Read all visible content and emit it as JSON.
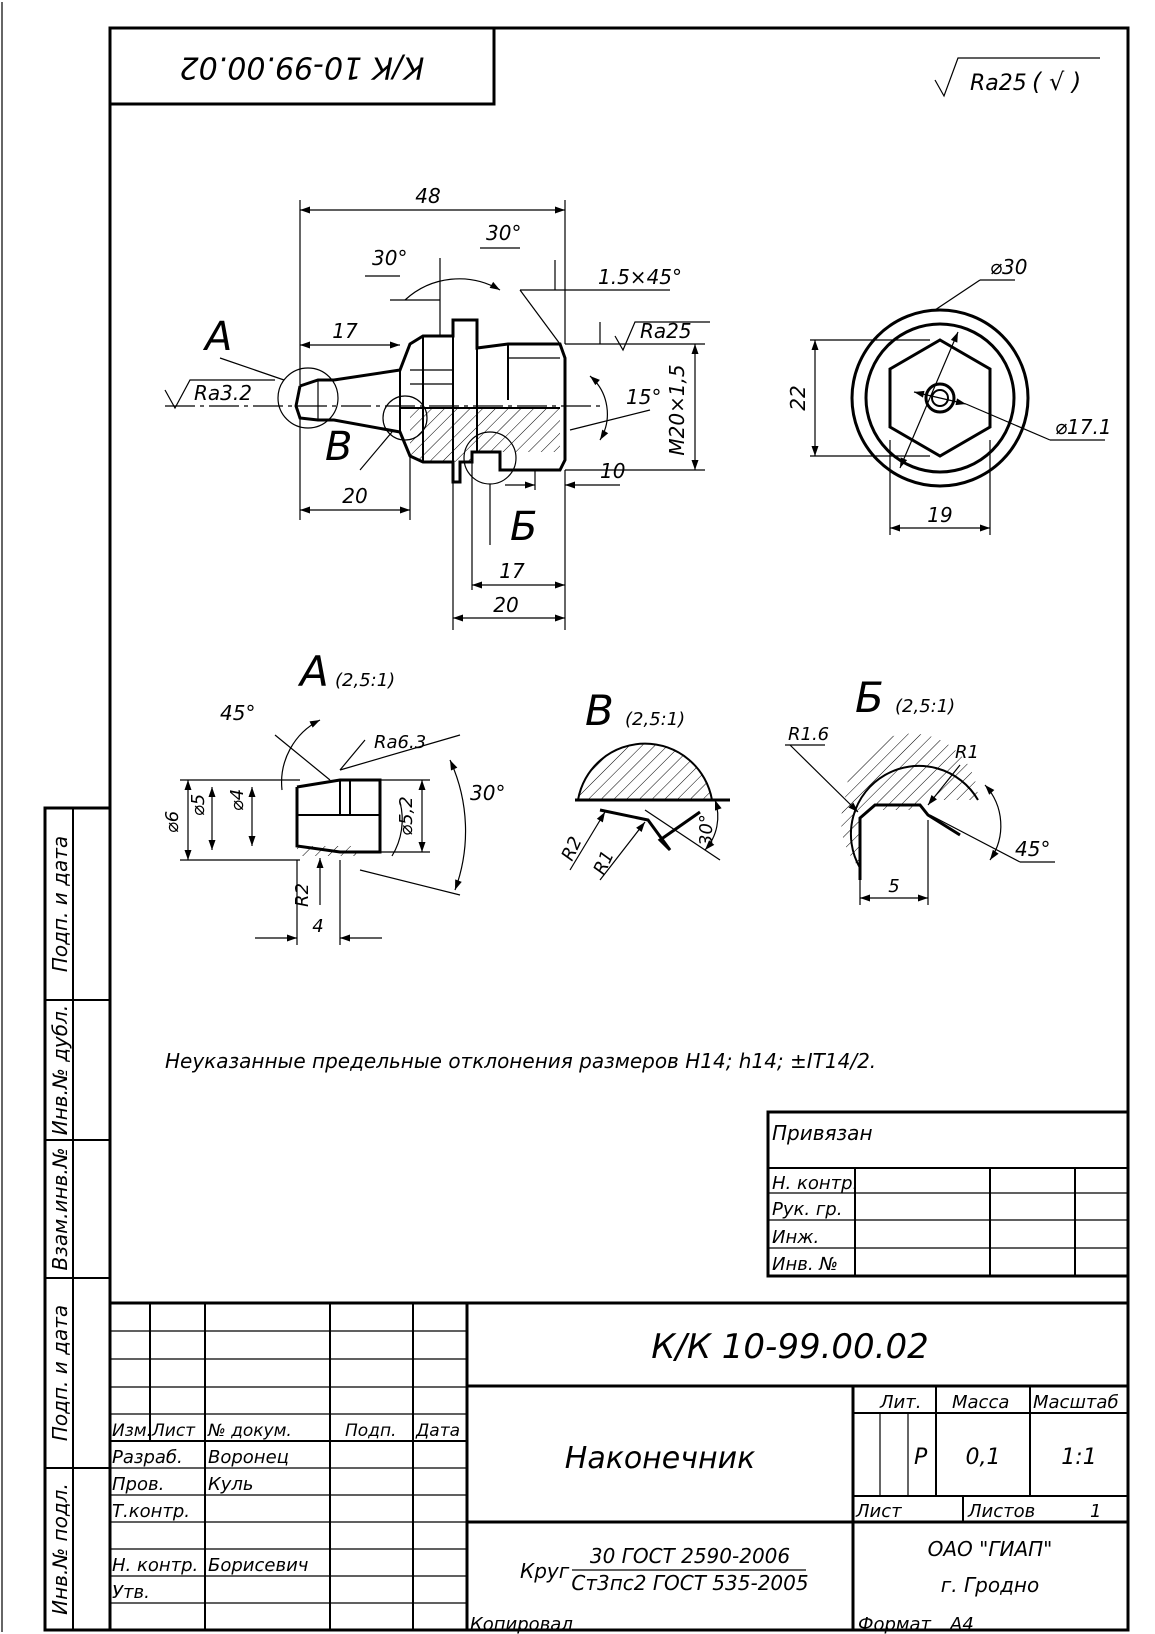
{
  "corner_designation": "К/К 10-99.00.02",
  "roughness_general": "Ra25",
  "roughness_general_bracket": "( √ )",
  "main_view": {
    "dims": {
      "overall_length": "48",
      "angle_left": "30°",
      "angle_right": "30°",
      "chamfer": "1.5×45°",
      "len_17_left": "17",
      "len_20_left": "20",
      "len_17_bottom": "17",
      "len_20_bottom": "20",
      "len_10": "10",
      "thread": "M20×1,5",
      "angle_15": "15°"
    },
    "roughness_left": "Ra3.2",
    "roughness_right": "Ra25",
    "callout_a": "А",
    "callout_v": "В",
    "callout_b": "Б"
  },
  "end_view": {
    "dia_30": "⌀30",
    "dia_17_1": "⌀17.1",
    "dim_22": "22",
    "dim_19": "19"
  },
  "detail_a": {
    "letter": "А",
    "scale": "(2,5:1)",
    "angle_45": "45°",
    "roughness": "Ra6.3",
    "angle_30": "30°",
    "d6": "⌀6",
    "d5": "⌀5",
    "d4": "⌀4",
    "d5_2": "⌀5,2",
    "r2": "R2",
    "len_4": "4"
  },
  "detail_v": {
    "letter": "В",
    "scale": "(2,5:1)",
    "r2": "R2",
    "r1": "R1",
    "angle_30": "30°"
  },
  "detail_b": {
    "letter": "Б",
    "scale": "(2,5:1)",
    "r1_6": "R1.6",
    "r1": "R1",
    "angle_45": "45°",
    "len_5": "5"
  },
  "note": "Неуказанные предельные отклонения размеров H14; h14; ±IT14/2.",
  "binding": {
    "title": "Привязан",
    "rows": [
      "Н. контр.",
      "Рук. гр.",
      "Инж.",
      "Инв. №"
    ]
  },
  "side_strip": [
    "Подп. и дата",
    "Инв.№ дубл.",
    "Взам.инв.№",
    "Подп. и дата",
    "Инв.№ подл."
  ],
  "title_block": {
    "designation": "К/К 10-99.00.02",
    "name": "Наконечник",
    "headers": {
      "izm": "Изм.",
      "list": "Лист",
      "doc": "№ докум.",
      "sign": "Подп.",
      "date": "Дата"
    },
    "roles": [
      {
        "role": "Разраб.",
        "name": "Воронец"
      },
      {
        "role": "Пров.",
        "name": "Куль"
      },
      {
        "role": "Т.контр.",
        "name": ""
      },
      {
        "role": "",
        "name": ""
      },
      {
        "role": "Н. контр.",
        "name": "Борисевич"
      },
      {
        "role": "Утв.",
        "name": ""
      }
    ],
    "lit_label": "Лит.",
    "mass_label": "Масса",
    "scale_label": "Масштаб",
    "lit_value": "Р",
    "mass_value": "0,1",
    "scale_value": "1:1",
    "sheet_label": "Лист",
    "sheets_label": "Листов",
    "sheets_value": "1",
    "material_prefix": "Круг",
    "material_top": "30 ГОСТ 2590-2006",
    "material_bottom": "Ст3пс2 ГОСТ 535-2005",
    "org": "ОАО \"ГИАП\"",
    "city": "г. Гродно"
  },
  "footer": {
    "copied": "Копировал",
    "format_label": "Формат",
    "format_value": "А4"
  }
}
